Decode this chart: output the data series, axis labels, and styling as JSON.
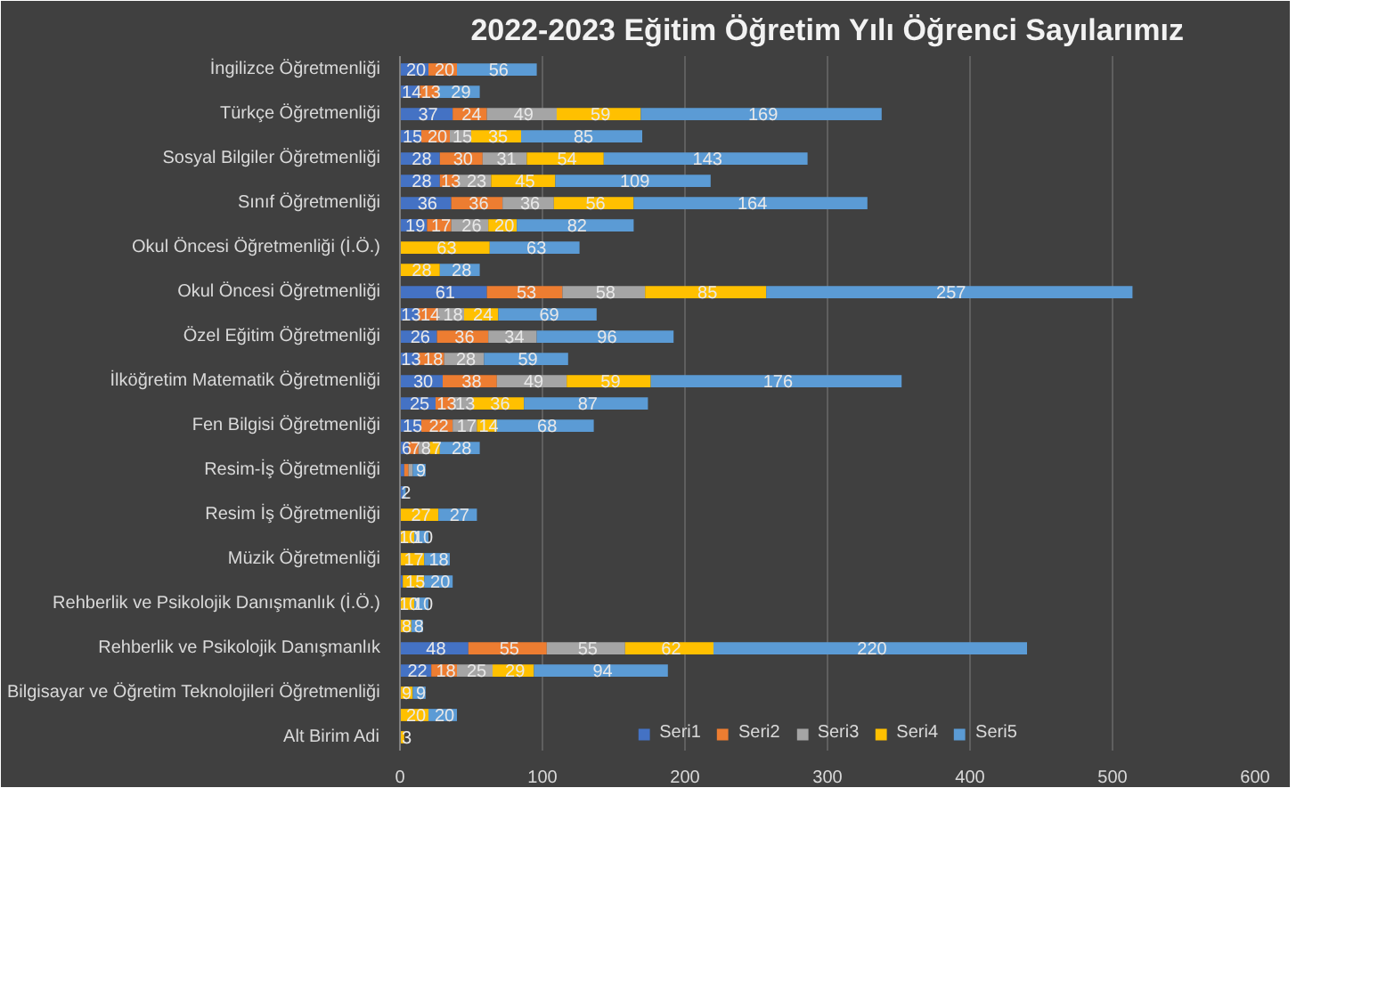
{
  "chart_data": {
    "type": "bar",
    "orientation": "horizontal",
    "stacked": true,
    "title": "2022-2023 Eğitim Öğretim Yılı Öğrenci Sayılarımız",
    "categories": [
      "İngilizce Öğretmenliği",
      null,
      "Türkçe Öğretmenliği",
      null,
      "Sosyal Bilgiler Öğretmenliği",
      null,
      "Sınıf Öğretmenliği",
      null,
      "Okul Öncesi Öğretmenliği (İ.Ö.)",
      null,
      "Okul Öncesi Öğretmenliği",
      null,
      "Özel Eğitim Öğretmenliği",
      null,
      "İlköğretim Matematik Öğretmenliği",
      null,
      "Fen Bilgisi Öğretmenliği",
      null,
      "Resim-İş Öğretmenliği",
      null,
      "Resim İş Öğretmenliği",
      null,
      "Müzik Öğretmenliği",
      null,
      "Rehberlik ve Psikolojik Danışmanlık (İ.Ö.)",
      null,
      "Rehberlik ve Psikolojik Danışmanlık",
      null,
      "Bilgisayar ve Öğretim Teknolojileri Öğretmenliği",
      null,
      "Alt Birim Adi"
    ],
    "series": [
      {
        "name": "Seri1",
        "color": "#4472c4",
        "values": [
          20,
          14,
          37,
          15,
          28,
          28,
          36,
          19,
          null,
          null,
          61,
          13,
          26,
          13,
          30,
          25,
          15,
          6,
          3,
          2,
          null,
          null,
          null,
          2,
          null,
          null,
          48,
          22,
          null,
          null,
          null
        ],
        "value_labels": [
          "20",
          "14",
          "37",
          "15",
          "28",
          "28",
          "36",
          "19",
          null,
          null,
          "61",
          "13",
          "26",
          "13",
          "30",
          "25",
          "15",
          "6",
          null,
          null,
          null,
          null,
          null,
          null,
          null,
          null,
          "48",
          "22",
          null,
          null,
          null
        ]
      },
      {
        "name": "Seri2",
        "color": "#ed7d31",
        "values": [
          20,
          13,
          24,
          20,
          30,
          13,
          36,
          17,
          null,
          null,
          53,
          14,
          36,
          18,
          38,
          13,
          22,
          7,
          3,
          null,
          null,
          null,
          null,
          null,
          null,
          null,
          55,
          18,
          null,
          null,
          null
        ],
        "value_labels": [
          "20",
          "13",
          "24",
          "20",
          "30",
          "13",
          "36",
          "17",
          null,
          null,
          "53",
          "14",
          "36",
          "18",
          "38",
          "13",
          "22",
          "7",
          null,
          null,
          null,
          null,
          null,
          null,
          null,
          null,
          "55",
          "18",
          null,
          null,
          null
        ]
      },
      {
        "name": "Seri3",
        "color": "#a5a5a5",
        "values": [
          null,
          null,
          49,
          15,
          31,
          23,
          36,
          26,
          null,
          null,
          58,
          18,
          34,
          28,
          49,
          13,
          17,
          8,
          3,
          null,
          null,
          null,
          null,
          null,
          null,
          null,
          55,
          25,
          null,
          null,
          null
        ],
        "value_labels": [
          null,
          null,
          "49",
          "15",
          "31",
          "23",
          "36",
          "26",
          null,
          null,
          "58",
          "18",
          "34",
          "28",
          "49",
          "13",
          "17",
          "8",
          null,
          null,
          null,
          null,
          null,
          null,
          null,
          null,
          "55",
          "25",
          null,
          null,
          null
        ]
      },
      {
        "name": "Seri4",
        "color": "#ffc000",
        "values": [
          null,
          null,
          59,
          35,
          54,
          45,
          56,
          20,
          63,
          28,
          85,
          24,
          null,
          null,
          59,
          36,
          14,
          7,
          null,
          null,
          27,
          10,
          17,
          15,
          10,
          8,
          62,
          29,
          9,
          20,
          3
        ],
        "value_labels": [
          null,
          null,
          "59",
          "35",
          "54",
          "45",
          "56",
          "20",
          "63",
          "28",
          "85",
          "24",
          null,
          null,
          "59",
          "36",
          "14",
          "7",
          null,
          null,
          "27",
          "10",
          "17",
          "15",
          "10",
          "8",
          "62",
          "29",
          "9",
          "20",
          "3"
        ]
      },
      {
        "name": "Seri5",
        "color": "#5b9bd5",
        "values": [
          56,
          29,
          169,
          85,
          143,
          109,
          164,
          82,
          63,
          28,
          257,
          69,
          96,
          59,
          176,
          87,
          68,
          28,
          9,
          2,
          27,
          10,
          18,
          20,
          10,
          8,
          220,
          94,
          9,
          20,
          0
        ],
        "value_labels": [
          "56",
          "29",
          "169",
          "85",
          "143",
          "109",
          "164",
          "82",
          "63",
          "28",
          "257",
          "69",
          "96",
          "59",
          "176",
          "87",
          "68",
          "28",
          "9",
          "2",
          "27",
          "10",
          "18",
          "20",
          "10",
          "8",
          "220",
          "94",
          "9",
          "20",
          null
        ]
      }
    ],
    "xlim": [
      0,
      600
    ],
    "xticks": [
      0,
      100,
      200,
      300,
      400,
      500,
      600
    ],
    "grid": "x",
    "legend": "bottom"
  }
}
